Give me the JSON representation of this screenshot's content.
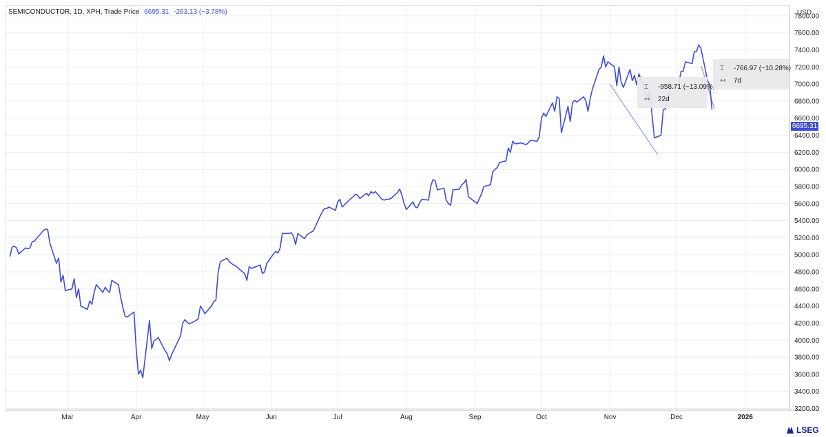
{
  "header": {
    "instrument": "SEMICONDUCTOR, 1D, XPH, Trade Price",
    "last_price": "6695.31",
    "change": "-263.13 (−3.78%)"
  },
  "currency_label": "USD",
  "current_price_tag": "6695.31",
  "measure_boxes": [
    {
      "change": "-958.71 (−13.09%)",
      "duration": "22d"
    },
    {
      "change": "-766.97 (−10.28%)",
      "duration": "7d"
    }
  ],
  "brand": "LSEG",
  "colors": {
    "line": "#3e4cd6",
    "grid": "#ececec",
    "tag_bg": "#3e4cd6"
  },
  "icons": {
    "range": "price-range-icon",
    "duration": "date-range-icon"
  },
  "chart_data": {
    "type": "line",
    "y_ticks": [
      "7800.00",
      "7600.00",
      "7400.00",
      "7200.00",
      "7000.00",
      "6800.00",
      "6600.00",
      "6400.00",
      "6200.00",
      "6000.00",
      "5800.00",
      "5600.00",
      "5400.00",
      "5200.00",
      "5000.00",
      "4800.00",
      "4600.00",
      "4400.00",
      "4200.00",
      "4000.00",
      "3800.00",
      "3600.00",
      "3400.00",
      "3200.00"
    ],
    "x_ticks": [
      {
        "label": "Mar",
        "x": "2025-03-01"
      },
      {
        "label": "Apr",
        "x": "2025-04-01"
      },
      {
        "label": "May",
        "x": "2025-05-01"
      },
      {
        "label": "Jun",
        "x": "2025-06-01"
      },
      {
        "label": "Jul",
        "x": "2025-07-01"
      },
      {
        "label": "Aug",
        "x": "2025-08-01"
      },
      {
        "label": "Sep",
        "x": "2025-09-01"
      },
      {
        "label": "Oct",
        "x": "2025-10-01"
      },
      {
        "label": "Nov",
        "x": "2025-11-01"
      },
      {
        "label": "Dec",
        "x": "2025-12-01"
      },
      {
        "label": "2026",
        "x": "2026-01-01"
      }
    ],
    "ylim": [
      3180,
      7920
    ],
    "xlim": [
      "2025-02-01",
      "2026-01-21"
    ],
    "grid": true,
    "series": [
      {
        "values": [
          [
            "2025-02-03",
            4980
          ],
          [
            "2025-02-04",
            5090
          ],
          [
            "2025-02-05",
            5100
          ],
          [
            "2025-02-06",
            5080
          ],
          [
            "2025-02-07",
            5010
          ],
          [
            "2025-02-10",
            5080
          ],
          [
            "2025-02-11",
            5070
          ],
          [
            "2025-02-12",
            5080
          ],
          [
            "2025-02-13",
            5150
          ],
          [
            "2025-02-14",
            5160
          ],
          [
            "2025-02-18",
            5280
          ],
          [
            "2025-02-19",
            5300
          ],
          [
            "2025-02-20",
            5300
          ],
          [
            "2025-02-21",
            5140
          ],
          [
            "2025-02-24",
            4900
          ],
          [
            "2025-02-25",
            4960
          ],
          [
            "2025-02-26",
            4680
          ],
          [
            "2025-02-27",
            4760
          ],
          [
            "2025-02-28",
            4580
          ],
          [
            "2025-03-03",
            4600
          ],
          [
            "2025-03-04",
            4720
          ],
          [
            "2025-03-05",
            4500
          ],
          [
            "2025-03-06",
            4600
          ],
          [
            "2025-03-07",
            4400
          ],
          [
            "2025-03-10",
            4360
          ],
          [
            "2025-03-11",
            4460
          ],
          [
            "2025-03-12",
            4420
          ],
          [
            "2025-03-13",
            4560
          ],
          [
            "2025-03-14",
            4650
          ],
          [
            "2025-03-17",
            4560
          ],
          [
            "2025-03-18",
            4620
          ],
          [
            "2025-03-19",
            4580
          ],
          [
            "2025-03-20",
            4560
          ],
          [
            "2025-03-21",
            4700
          ],
          [
            "2025-03-24",
            4650
          ],
          [
            "2025-03-25",
            4500
          ],
          [
            "2025-03-26",
            4380
          ],
          [
            "2025-03-27",
            4280
          ],
          [
            "2025-03-28",
            4270
          ],
          [
            "2025-03-31",
            4330
          ],
          [
            "2025-04-01",
            3900
          ],
          [
            "2025-04-02",
            3600
          ],
          [
            "2025-04-03",
            3650
          ],
          [
            "2025-04-04",
            3560
          ],
          [
            "2025-04-07",
            4230
          ],
          [
            "2025-04-08",
            3900
          ],
          [
            "2025-04-09",
            3990
          ],
          [
            "2025-04-10",
            4010
          ],
          [
            "2025-04-11",
            4030
          ],
          [
            "2025-04-14",
            3880
          ],
          [
            "2025-04-15",
            3840
          ],
          [
            "2025-04-16",
            3760
          ],
          [
            "2025-04-17",
            3830
          ],
          [
            "2025-04-21",
            4050
          ],
          [
            "2025-04-22",
            4200
          ],
          [
            "2025-04-23",
            4240
          ],
          [
            "2025-04-24",
            4210
          ],
          [
            "2025-04-25",
            4190
          ],
          [
            "2025-04-28",
            4230
          ],
          [
            "2025-04-29",
            4250
          ],
          [
            "2025-04-30",
            4400
          ],
          [
            "2025-05-01",
            4360
          ],
          [
            "2025-05-02",
            4310
          ],
          [
            "2025-05-05",
            4400
          ],
          [
            "2025-05-06",
            4450
          ],
          [
            "2025-05-07",
            4470
          ],
          [
            "2025-05-08",
            4790
          ],
          [
            "2025-05-09",
            4920
          ],
          [
            "2025-05-12",
            4960
          ],
          [
            "2025-05-13",
            4920
          ],
          [
            "2025-05-14",
            4900
          ],
          [
            "2025-05-15",
            4880
          ],
          [
            "2025-05-16",
            4870
          ],
          [
            "2025-05-19",
            4800
          ],
          [
            "2025-05-20",
            4780
          ],
          [
            "2025-05-21",
            4700
          ],
          [
            "2025-05-22",
            4860
          ],
          [
            "2025-05-23",
            4840
          ],
          [
            "2025-05-27",
            4880
          ],
          [
            "2025-05-28",
            4780
          ],
          [
            "2025-05-29",
            4800
          ],
          [
            "2025-05-30",
            4900
          ],
          [
            "2025-06-02",
            5010
          ],
          [
            "2025-06-03",
            5040
          ],
          [
            "2025-06-04",
            5020
          ],
          [
            "2025-06-05",
            5080
          ],
          [
            "2025-06-06",
            5250
          ],
          [
            "2025-06-09",
            5250
          ],
          [
            "2025-06-10",
            5260
          ],
          [
            "2025-06-11",
            5220
          ],
          [
            "2025-06-12",
            5120
          ],
          [
            "2025-06-13",
            5250
          ],
          [
            "2025-06-16",
            5190
          ],
          [
            "2025-06-17",
            5230
          ],
          [
            "2025-06-18",
            5250
          ],
          [
            "2025-06-20",
            5280
          ],
          [
            "2025-06-23",
            5450
          ],
          [
            "2025-06-24",
            5500
          ],
          [
            "2025-06-25",
            5540
          ],
          [
            "2025-06-26",
            5540
          ],
          [
            "2025-06-27",
            5560
          ],
          [
            "2025-06-30",
            5520
          ],
          [
            "2025-07-01",
            5620
          ],
          [
            "2025-07-02",
            5650
          ],
          [
            "2025-07-03",
            5560
          ],
          [
            "2025-07-07",
            5660
          ],
          [
            "2025-07-08",
            5680
          ],
          [
            "2025-07-09",
            5710
          ],
          [
            "2025-07-10",
            5700
          ],
          [
            "2025-07-11",
            5660
          ],
          [
            "2025-07-14",
            5720
          ],
          [
            "2025-07-15",
            5690
          ],
          [
            "2025-07-16",
            5740
          ],
          [
            "2025-07-17",
            5720
          ],
          [
            "2025-07-18",
            5740
          ],
          [
            "2025-07-21",
            5650
          ],
          [
            "2025-07-22",
            5640
          ],
          [
            "2025-07-23",
            5650
          ],
          [
            "2025-07-24",
            5650
          ],
          [
            "2025-07-25",
            5660
          ],
          [
            "2025-07-28",
            5730
          ],
          [
            "2025-07-29",
            5770
          ],
          [
            "2025-07-30",
            5700
          ],
          [
            "2025-07-31",
            5600
          ],
          [
            "2025-08-01",
            5530
          ],
          [
            "2025-08-04",
            5620
          ],
          [
            "2025-08-05",
            5560
          ],
          [
            "2025-08-06",
            5550
          ],
          [
            "2025-08-07",
            5610
          ],
          [
            "2025-08-08",
            5650
          ],
          [
            "2025-08-11",
            5640
          ],
          [
            "2025-08-12",
            5800
          ],
          [
            "2025-08-13",
            5880
          ],
          [
            "2025-08-14",
            5870
          ],
          [
            "2025-08-15",
            5760
          ],
          [
            "2025-08-18",
            5780
          ],
          [
            "2025-08-19",
            5640
          ],
          [
            "2025-08-20",
            5600
          ],
          [
            "2025-08-21",
            5580
          ],
          [
            "2025-08-22",
            5760
          ],
          [
            "2025-08-25",
            5770
          ],
          [
            "2025-08-26",
            5820
          ],
          [
            "2025-08-27",
            5840
          ],
          [
            "2025-08-28",
            5880
          ],
          [
            "2025-08-29",
            5680
          ],
          [
            "2025-09-02",
            5600
          ],
          [
            "2025-09-03",
            5660
          ],
          [
            "2025-09-04",
            5720
          ],
          [
            "2025-09-05",
            5800
          ],
          [
            "2025-09-08",
            5820
          ],
          [
            "2025-09-09",
            5970
          ],
          [
            "2025-09-10",
            6000
          ],
          [
            "2025-09-11",
            6020
          ],
          [
            "2025-09-12",
            6080
          ],
          [
            "2025-09-15",
            6100
          ],
          [
            "2025-09-16",
            6250
          ],
          [
            "2025-09-17",
            6200
          ],
          [
            "2025-09-18",
            6330
          ],
          [
            "2025-09-19",
            6300
          ],
          [
            "2025-09-22",
            6310
          ],
          [
            "2025-09-23",
            6300
          ],
          [
            "2025-09-24",
            6290
          ],
          [
            "2025-09-25",
            6310
          ],
          [
            "2025-09-26",
            6340
          ],
          [
            "2025-09-29",
            6330
          ],
          [
            "2025-09-30",
            6380
          ],
          [
            "2025-10-01",
            6600
          ],
          [
            "2025-10-02",
            6660
          ],
          [
            "2025-10-03",
            6620
          ],
          [
            "2025-10-06",
            6780
          ],
          [
            "2025-10-07",
            6680
          ],
          [
            "2025-10-08",
            6850
          ],
          [
            "2025-10-09",
            6830
          ],
          [
            "2025-10-10",
            6430
          ],
          [
            "2025-10-13",
            6740
          ],
          [
            "2025-10-14",
            6560
          ],
          [
            "2025-10-15",
            6780
          ],
          [
            "2025-10-16",
            6810
          ],
          [
            "2025-10-17",
            6790
          ],
          [
            "2025-10-20",
            6850
          ],
          [
            "2025-10-21",
            6810
          ],
          [
            "2025-10-22",
            6680
          ],
          [
            "2025-10-23",
            6830
          ],
          [
            "2025-10-24",
            6940
          ],
          [
            "2025-10-27",
            7170
          ],
          [
            "2025-10-28",
            7200
          ],
          [
            "2025-10-29",
            7330
          ],
          [
            "2025-10-30",
            7200
          ],
          [
            "2025-10-31",
            7260
          ],
          [
            "2025-11-03",
            7200
          ],
          [
            "2025-11-04",
            6980
          ],
          [
            "2025-11-05",
            7200
          ],
          [
            "2025-11-06",
            7020
          ],
          [
            "2025-11-07",
            6960
          ],
          [
            "2025-11-10",
            7170
          ],
          [
            "2025-11-11",
            7040
          ],
          [
            "2025-11-12",
            7100
          ],
          [
            "2025-11-13",
            6990
          ],
          [
            "2025-11-14",
            7120
          ],
          [
            "2025-11-17",
            6900
          ],
          [
            "2025-11-18",
            6840
          ],
          [
            "2025-11-19",
            6920
          ],
          [
            "2025-11-20",
            6620
          ],
          [
            "2025-11-21",
            6370
          ],
          [
            "2025-11-24",
            6400
          ],
          [
            "2025-11-25",
            6700
          ],
          [
            "2025-11-26",
            6710
          ],
          [
            "2025-11-28",
            6930
          ],
          [
            "2025-12-01",
            6990
          ],
          [
            "2025-12-02",
            7000
          ],
          [
            "2025-12-03",
            7150
          ],
          [
            "2025-12-04",
            7150
          ],
          [
            "2025-12-05",
            7260
          ],
          [
            "2025-12-08",
            7240
          ],
          [
            "2025-12-09",
            7380
          ],
          [
            "2025-12-10",
            7380
          ],
          [
            "2025-12-11",
            7460
          ],
          [
            "2025-12-12",
            7420
          ],
          [
            "2025-12-15",
            7040
          ],
          [
            "2025-12-16",
            6990
          ],
          [
            "2025-12-17",
            6700
          ]
        ]
      }
    ]
  }
}
